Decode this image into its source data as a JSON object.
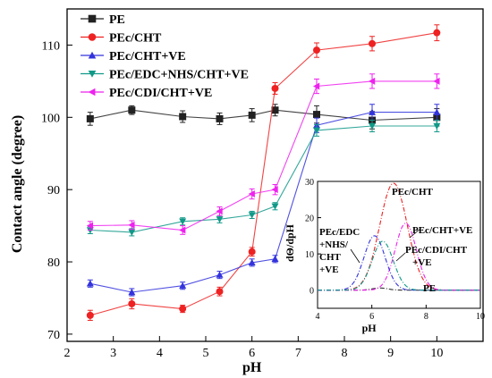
{
  "chart_data": [
    {
      "type": "line",
      "xlabel": "pH",
      "ylabel": "Contact angle (degree)",
      "xlim": [
        2,
        11
      ],
      "ylim": [
        69,
        115
      ],
      "xticks": [
        2,
        3,
        4,
        5,
        6,
        7,
        8,
        9,
        10
      ],
      "yticks": [
        70,
        80,
        90,
        100,
        110
      ],
      "x": [
        2.5,
        3.4,
        4.5,
        5.3,
        6.0,
        6.5,
        7.4,
        8.6,
        10.0
      ],
      "legend_position": "top-left",
      "error_bars": true,
      "series": [
        {
          "name": "PE",
          "color": "#222222",
          "marker": "square",
          "values": [
            99.8,
            101.0,
            100.1,
            99.8,
            100.3,
            101.0,
            100.4,
            99.6,
            100.0
          ],
          "errors": [
            0.9,
            0.6,
            0.8,
            0.8,
            0.9,
            0.8,
            1.2,
            1.2,
            1.2
          ]
        },
        {
          "name": "PEc/CHT",
          "color": "#ee2222",
          "marker": "circle",
          "values": [
            72.6,
            74.2,
            73.5,
            75.9,
            81.4,
            104.0,
            109.3,
            110.2,
            111.7
          ],
          "errors": [
            0.7,
            0.7,
            0.5,
            0.6,
            0.6,
            0.8,
            1.0,
            1.0,
            1.1
          ]
        },
        {
          "name": "PEc/CHT+VE",
          "color": "#3333dd",
          "marker": "triangle-up",
          "values": [
            77.0,
            75.8,
            76.7,
            78.2,
            79.9,
            80.4,
            98.9,
            100.7,
            100.7
          ],
          "errors": [
            0.5,
            0.5,
            0.5,
            0.5,
            0.5,
            0.5,
            1.0,
            1.1,
            1.1
          ]
        },
        {
          "name": "PEc/EDC+NHS/CHT+VE",
          "color": "#119988",
          "marker": "triangle-down",
          "values": [
            84.4,
            84.1,
            85.6,
            85.9,
            86.5,
            87.7,
            98.2,
            98.8,
            98.8
          ],
          "errors": [
            0.5,
            0.5,
            0.5,
            0.5,
            0.5,
            0.5,
            0.8,
            0.8,
            0.8
          ]
        },
        {
          "name": "PEc/CDI/CHT+VE",
          "color": "#ee22ee",
          "marker": "triangle-left",
          "values": [
            85.0,
            85.1,
            84.4,
            87.0,
            89.4,
            90.0,
            104.3,
            105.0,
            105.0
          ],
          "errors": [
            0.6,
            0.6,
            0.6,
            0.6,
            0.7,
            0.7,
            1.0,
            1.0,
            1.0
          ]
        }
      ]
    },
    {
      "type": "line",
      "xlabel": "pH",
      "ylabel": "dΘ/dpH",
      "xlim": [
        4,
        10
      ],
      "ylim": [
        -5,
        30
      ],
      "xticks": [
        4,
        6,
        8,
        10
      ],
      "yticks": [
        0,
        10,
        20,
        30
      ],
      "series": [
        {
          "name": "PE",
          "label": "PE",
          "color": "#333333",
          "peak_x": 6.3,
          "peak_y": 0.6,
          "width": 0.4
        },
        {
          "name": "PEc/CHT",
          "label": "PEc/CHT",
          "color": "#ee2222",
          "peak_x": 6.8,
          "peak_y": 29.5,
          "width": 0.72
        },
        {
          "name": "PEc/CHT+VE",
          "label": "PEc/CHT+VE",
          "color": "#ee22ee",
          "peak_x": 7.25,
          "peak_y": 18.5,
          "width": 0.55
        },
        {
          "name": "PEc/EDC+NHS/CHT+VE",
          "label_lines": [
            "PEc/EDC",
            "+NHS/",
            "CHT",
            "+VE"
          ],
          "color": "#3333dd",
          "peak_x": 6.1,
          "peak_y": 15.0,
          "width": 0.55
        },
        {
          "name": "PEc/CDI/CHT+VE",
          "label_lines": [
            "PEc/CDI/CHT",
            "+VE"
          ],
          "color": "#119988",
          "peak_x": 6.4,
          "peak_y": 13.5,
          "width": 0.55
        }
      ]
    }
  ]
}
